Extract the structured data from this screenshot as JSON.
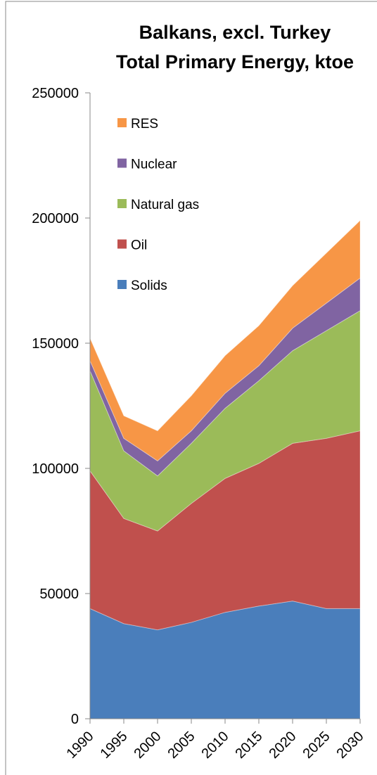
{
  "chart_data": {
    "type": "stacked_area",
    "title": [
      "Balkans, excl. Turkey",
      "Total Primary Energy, ktoe"
    ],
    "categories": [
      "1990",
      "1995",
      "2000",
      "2005",
      "2010",
      "2015",
      "2020",
      "2025",
      "2030"
    ],
    "series": [
      {
        "name": "Solids",
        "color": "#4a7ebb",
        "values": [
          44000,
          38000,
          35500,
          38500,
          42500,
          45000,
          47000,
          44000,
          44000
        ]
      },
      {
        "name": "Oil",
        "color": "#c0504d",
        "values": [
          55000,
          42000,
          39500,
          47500,
          53500,
          57000,
          63000,
          68000,
          71000
        ]
      },
      {
        "name": "Natural gas",
        "color": "#9bbb59",
        "values": [
          40000,
          27000,
          22000,
          24000,
          28000,
          33000,
          37000,
          43000,
          48000
        ]
      },
      {
        "name": "Nuclear",
        "color": "#8064a2",
        "values": [
          4000,
          5000,
          6000,
          5000,
          6000,
          6000,
          9000,
          11000,
          13000
        ]
      },
      {
        "name": "RES",
        "color": "#f79646",
        "values": [
          9000,
          9000,
          12000,
          14000,
          15000,
          16000,
          17000,
          20000,
          23000
        ]
      }
    ],
    "ylim": [
      0,
      250000
    ],
    "yticks": [
      0,
      50000,
      100000,
      150000,
      200000,
      250000
    ],
    "grid": false,
    "legend": "upper left"
  }
}
